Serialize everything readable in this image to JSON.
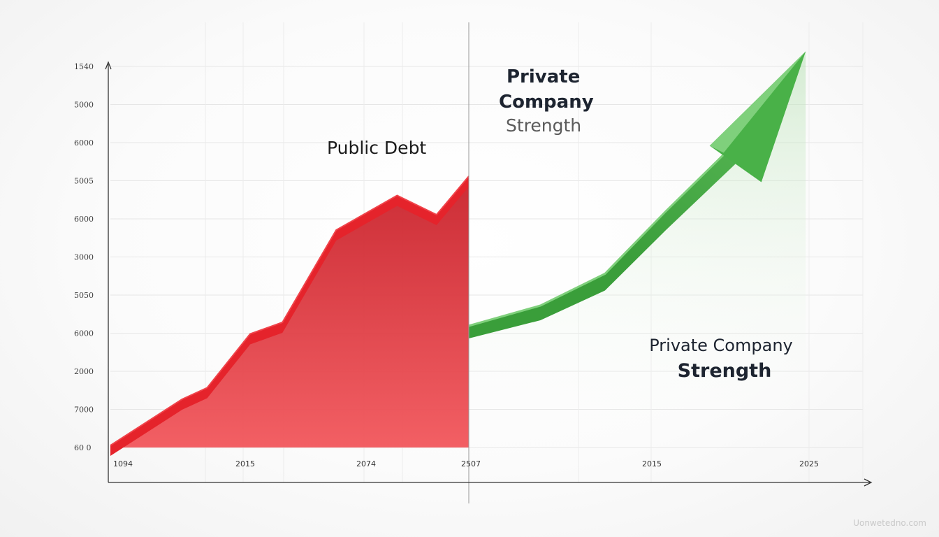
{
  "chart_data": {
    "type": "area",
    "title_left": "Public Debt",
    "title_right_top": [
      "Private",
      "Company",
      "Strength"
    ],
    "title_right_bottom": [
      "Private Company",
      "Strength"
    ],
    "y_tick_labels": [
      "1540",
      "5000",
      "6000",
      "5005",
      "6000",
      "3000",
      "5050",
      "6000",
      "2000",
      "7000",
      "60 0"
    ],
    "x_tick_labels": [
      "1094",
      "2015",
      "2074",
      "2507",
      "2015",
      "2025"
    ],
    "grid": true,
    "series": [
      {
        "color": "#e5232b",
        "style": "area",
        "points": [
          [
            0,
            0
          ],
          [
            0.2,
            1.2
          ],
          [
            0.27,
            1.5
          ],
          [
            0.39,
            2.9
          ],
          [
            0.48,
            3.2
          ],
          [
            0.63,
            5.6
          ],
          [
            0.8,
            6.5
          ],
          [
            0.91,
            6.0
          ],
          [
            1,
            7.0
          ]
        ]
      },
      {
        "color": "#49b148",
        "style": "arrow",
        "points": [
          [
            1,
            3.0
          ],
          [
            1.2,
            3.5
          ],
          [
            1.38,
            4.3
          ],
          [
            1.55,
            5.9
          ],
          [
            1.75,
            7.7
          ],
          [
            1.94,
            10.3
          ]
        ]
      }
    ],
    "colors": {
      "debt": "#e5232b",
      "debt_fill": "#ef4f55",
      "strength": "#49b148",
      "strength_light": "#7fd07c"
    }
  },
  "watermark": "Uonwetedno.com"
}
